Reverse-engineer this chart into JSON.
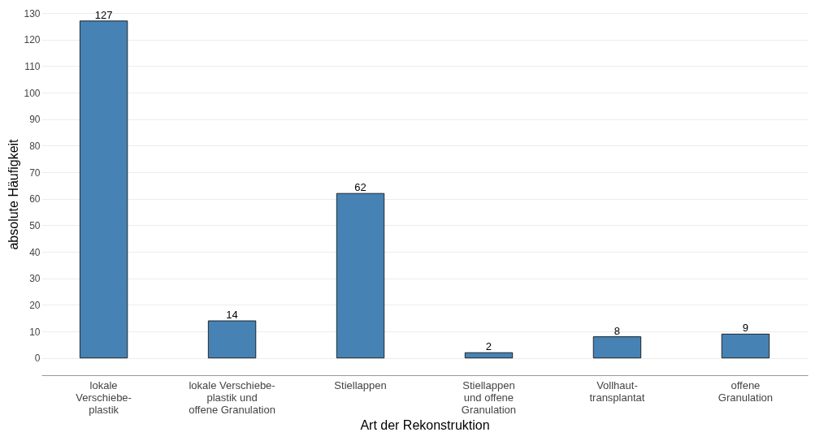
{
  "chart_data": {
    "type": "bar",
    "xlabel": "Art der Rekonstruktion",
    "ylabel": "absolute Häufigkeit",
    "categories": [
      "lokale\nVerschiebe-\nplastik",
      "lokale Verschiebe-\nplastik und\noffene Granulation",
      "Stiellappen",
      "Stiellappen\nund offene\nGranulation",
      "Vollhaut-\ntransplantat",
      "offene\nGranulation"
    ],
    "values": [
      127,
      14,
      62,
      2,
      8,
      9
    ],
    "color": "#4682b4",
    "ylim": [
      -6.5,
      130
    ],
    "yticks": [
      0,
      10,
      20,
      30,
      40,
      50,
      60,
      70,
      80,
      90,
      100,
      110,
      120,
      130
    ],
    "grid": "y",
    "data_labels": true
  }
}
